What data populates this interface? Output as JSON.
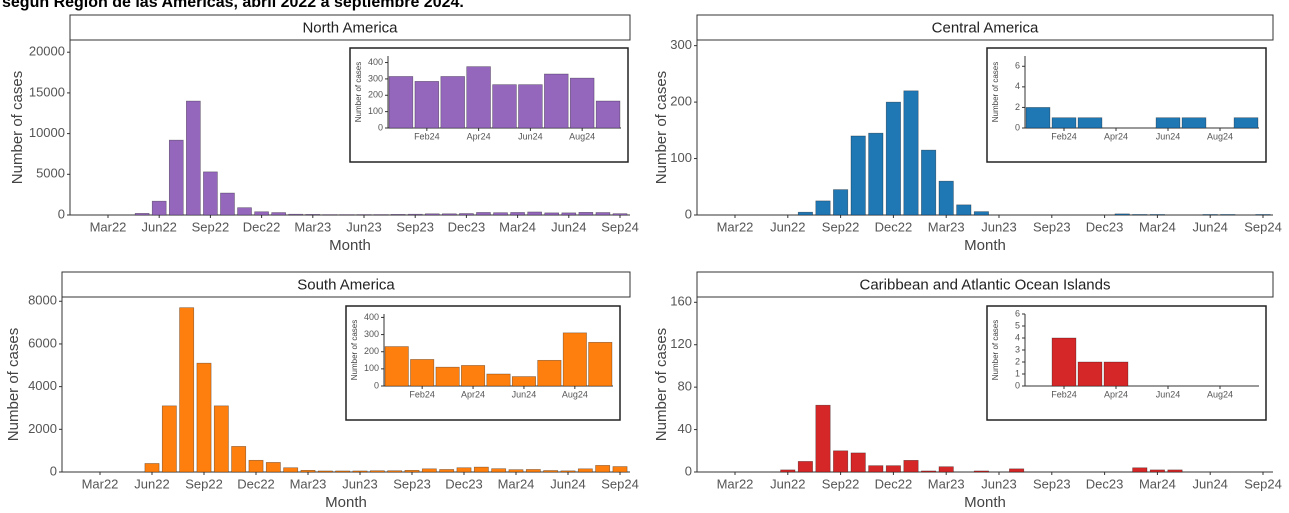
{
  "title": "según Región de las Américas, abril 2022 a septiembre 2024.",
  "chart_data": [
    {
      "type": "bar",
      "title": "North America",
      "xlabel": "Month",
      "ylabel": "Number of cases",
      "color": "#9467bd",
      "categories": [
        "Mar22",
        null,
        null,
        "Jun22",
        null,
        null,
        "Sep22",
        null,
        null,
        "Dec22",
        null,
        null,
        "Mar23",
        null,
        null,
        "Jun23",
        null,
        null,
        "Sep23",
        null,
        null,
        "Dec23",
        null,
        null,
        "Mar24",
        null,
        null,
        "Jun24",
        null,
        null,
        "Sep24"
      ],
      "values": [
        0,
        0,
        200,
        1700,
        9200,
        14000,
        5300,
        2700,
        900,
        400,
        300,
        100,
        80,
        50,
        50,
        60,
        60,
        80,
        100,
        150,
        150,
        180,
        315,
        285,
        315,
        375,
        265,
        265,
        330,
        305,
        165
      ],
      "ylim": [
        0,
        21500
      ],
      "yticks": [
        0,
        5000,
        10000,
        15000,
        20000
      ],
      "inset": {
        "type": "bar",
        "ylabel": "Number of cases",
        "categories": [
          null,
          "Feb24",
          null,
          "Apr24",
          null,
          "Jun24",
          null,
          "Aug24",
          null
        ],
        "values": [
          315,
          285,
          315,
          375,
          265,
          265,
          330,
          305,
          165
        ],
        "ylim": [
          0,
          440
        ],
        "yticks": [
          0,
          100,
          200,
          300,
          400
        ]
      }
    },
    {
      "type": "bar",
      "title": "Central America",
      "xlabel": "Month",
      "ylabel": "Number of cases",
      "color": "#1f77b4",
      "categories": [
        "Mar22",
        null,
        null,
        "Jun22",
        null,
        null,
        "Sep22",
        null,
        null,
        "Dec22",
        null,
        null,
        "Mar23",
        null,
        null,
        "Jun23",
        null,
        null,
        "Sep23",
        null,
        null,
        "Dec23",
        null,
        null,
        "Mar24",
        null,
        null,
        "Jun24",
        null,
        null,
        "Sep24"
      ],
      "values": [
        0,
        0,
        0,
        0,
        5,
        25,
        45,
        140,
        145,
        200,
        220,
        115,
        60,
        18,
        6,
        0,
        0,
        0,
        0,
        0,
        0,
        0,
        2,
        1,
        1,
        0,
        0,
        1,
        1,
        0,
        1
      ],
      "ylim": [
        0,
        310
      ],
      "yticks": [
        0,
        100,
        200,
        300
      ],
      "inset": {
        "type": "bar",
        "ylabel": "Number of cases",
        "categories": [
          null,
          "Feb24",
          null,
          "Apr24",
          null,
          "Jun24",
          null,
          "Aug24",
          null
        ],
        "values": [
          2,
          1,
          1,
          0,
          0,
          1,
          1,
          0,
          1
        ],
        "ylim": [
          0,
          7
        ],
        "yticks": [
          0,
          2,
          4,
          6
        ]
      }
    },
    {
      "type": "bar",
      "title": "South America",
      "xlabel": "Month",
      "ylabel": "Number of cases",
      "color": "#ff7f0e",
      "categories": [
        "Mar22",
        null,
        null,
        "Jun22",
        null,
        null,
        "Sep22",
        null,
        null,
        "Dec22",
        null,
        null,
        "Mar23",
        null,
        null,
        "Jun23",
        null,
        null,
        "Sep23",
        null,
        null,
        "Dec23",
        null,
        null,
        "Mar24",
        null,
        null,
        "Jun24",
        null,
        null,
        "Sep24"
      ],
      "values": [
        0,
        0,
        0,
        400,
        3100,
        7700,
        5100,
        3100,
        1200,
        550,
        450,
        200,
        80,
        50,
        50,
        50,
        60,
        60,
        80,
        150,
        120,
        200,
        230,
        155,
        110,
        120,
        70,
        55,
        150,
        310,
        255
      ],
      "ylim": [
        0,
        8200
      ],
      "yticks": [
        0,
        2000,
        4000,
        6000,
        8000
      ],
      "inset": {
        "type": "bar",
        "ylabel": "Number of cases",
        "categories": [
          null,
          "Feb24",
          null,
          "Apr24",
          null,
          "Jun24",
          null,
          "Aug24",
          null
        ],
        "values": [
          230,
          155,
          110,
          120,
          70,
          55,
          150,
          310,
          255
        ],
        "ylim": [
          0,
          420
        ],
        "yticks": [
          0,
          100,
          200,
          300,
          400
        ]
      }
    },
    {
      "type": "bar",
      "title": "Caribbean and Atlantic Ocean Islands",
      "xlabel": "Month",
      "ylabel": "Number of cases",
      "color": "#d62728",
      "categories": [
        "Mar22",
        null,
        null,
        "Jun22",
        null,
        null,
        "Sep22",
        null,
        null,
        "Dec22",
        null,
        null,
        "Mar23",
        null,
        null,
        "Jun23",
        null,
        null,
        "Sep23",
        null,
        null,
        "Dec23",
        null,
        null,
        "Mar24",
        null,
        null,
        "Jun24",
        null,
        null,
        "Sep24"
      ],
      "values": [
        0,
        0,
        0,
        2,
        10,
        63,
        20,
        18,
        6,
        6,
        11,
        1,
        5,
        0,
        1,
        0,
        3,
        0,
        0,
        0,
        0,
        0,
        0,
        4,
        2,
        2,
        0,
        0,
        0,
        0,
        0
      ],
      "ylim": [
        0,
        165
      ],
      "yticks": [
        0,
        40,
        80,
        120,
        160
      ],
      "inset": {
        "type": "bar",
        "ylabel": "Number of cases",
        "categories": [
          null,
          "Feb24",
          null,
          "Apr24",
          null,
          "Jun24",
          null,
          "Aug24",
          null
        ],
        "values": [
          0,
          4,
          2,
          2,
          0,
          0,
          0,
          0,
          0
        ],
        "ylim": [
          0,
          6
        ],
        "yticks": [
          0,
          1,
          2,
          3,
          4,
          5,
          6
        ]
      }
    }
  ]
}
